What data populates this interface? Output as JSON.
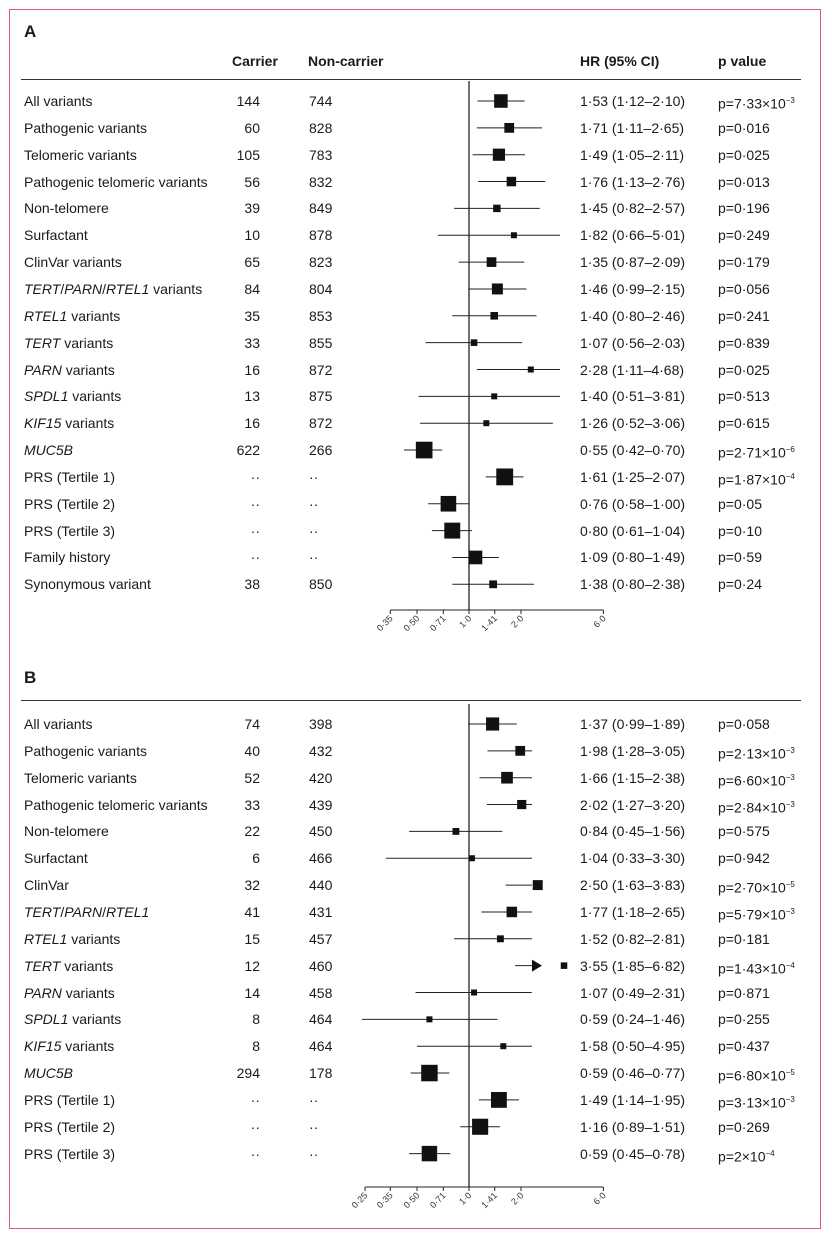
{
  "panels": [
    {
      "label": "A",
      "headers": {
        "carrier": "Carrier",
        "noncarrier": "Non-carrier",
        "hr": "HR (95% CI)",
        "p": "p value"
      },
      "axis_ticks": [
        "0·35",
        "0·50",
        "0·71",
        "1·0",
        "1·41",
        "2·0",
        "6·0"
      ]
    },
    {
      "label": "B",
      "axis_ticks": [
        "0·25",
        "0·35",
        "0·50",
        "0·71",
        "1·0",
        "1·41",
        "2·0",
        "6·0"
      ]
    }
  ],
  "chart_data": [
    {
      "type": "forest",
      "panel": "A",
      "xscale": "log",
      "reference_line": 1.0,
      "rows": [
        {
          "label": "All variants",
          "italic": [],
          "carrier": "144",
          "noncarrier": "744",
          "hr": 1.53,
          "lo": 1.12,
          "hi": 2.1,
          "hr_text": "1·53 (1·12–2·10)",
          "p_text": "p=7·33×10",
          "p_exp": "−3"
        },
        {
          "label": "Pathogenic variants",
          "carrier": "60",
          "noncarrier": "828",
          "hr": 1.71,
          "lo": 1.11,
          "hi": 2.65,
          "hr_text": "1·71 (1·11–2·65)",
          "p_text": "p=0·016",
          "p_exp": ""
        },
        {
          "label": "Telomeric variants",
          "carrier": "105",
          "noncarrier": "783",
          "hr": 1.49,
          "lo": 1.05,
          "hi": 2.11,
          "hr_text": "1·49 (1·05–2·11)",
          "p_text": "p=0·025",
          "p_exp": ""
        },
        {
          "label": "Pathogenic telomeric variants",
          "carrier": "56",
          "noncarrier": "832",
          "hr": 1.76,
          "lo": 1.13,
          "hi": 2.76,
          "hr_text": "1·76 (1·13–2·76)",
          "p_text": "p=0·013",
          "p_exp": ""
        },
        {
          "label": "Non-telomere",
          "carrier": "39",
          "noncarrier": "849",
          "hr": 1.45,
          "lo": 0.82,
          "hi": 2.57,
          "hr_text": "1·45 (0·82–2·57)",
          "p_text": "p=0·196",
          "p_exp": ""
        },
        {
          "label": "Surfactant",
          "carrier": "10",
          "noncarrier": "878",
          "hr": 1.82,
          "lo": 0.66,
          "hi": 5.01,
          "hr_text": "1·82 (0·66–5·01)",
          "p_text": "p=0·249",
          "p_exp": ""
        },
        {
          "label": "ClinVar variants",
          "carrier": "65",
          "noncarrier": "823",
          "hr": 1.35,
          "lo": 0.87,
          "hi": 2.09,
          "hr_text": "1·35 (0·87–2·09)",
          "p_text": "p=0·179",
          "p_exp": ""
        },
        {
          "label": "TERT/PARN/RTEL1 variants",
          "carrier": "84",
          "noncarrier": "804",
          "hr": 1.46,
          "lo": 0.99,
          "hi": 2.15,
          "hr_text": "1·46 (0·99–2·15)",
          "p_text": "p=0·056",
          "p_exp": ""
        },
        {
          "label": "RTEL1 variants",
          "carrier": "35",
          "noncarrier": "853",
          "hr": 1.4,
          "lo": 0.8,
          "hi": 2.46,
          "hr_text": "1·40 (0·80–2·46)",
          "p_text": "p=0·241",
          "p_exp": ""
        },
        {
          "label": "TERT variants",
          "carrier": "33",
          "noncarrier": "855",
          "hr": 1.07,
          "lo": 0.56,
          "hi": 2.03,
          "hr_text": "1·07 (0·56–2·03)",
          "p_text": "p=0·839",
          "p_exp": ""
        },
        {
          "label": "PARN variants",
          "carrier": "16",
          "noncarrier": "872",
          "hr": 2.28,
          "lo": 1.11,
          "hi": 4.68,
          "hr_text": "2·28 (1·11–4·68)",
          "p_text": "p=0·025",
          "p_exp": ""
        },
        {
          "label": "SPDL1 variants",
          "carrier": "13",
          "noncarrier": "875",
          "hr": 1.4,
          "lo": 0.51,
          "hi": 3.81,
          "hr_text": "1·40 (0·51–3·81)",
          "p_text": "p=0·513",
          "p_exp": ""
        },
        {
          "label": "KIF15 variants",
          "carrier": "16",
          "noncarrier": "872",
          "hr": 1.26,
          "lo": 0.52,
          "hi": 3.06,
          "hr_text": "1·26 (0·52–3·06)",
          "p_text": "p=0·615",
          "p_exp": ""
        },
        {
          "label": "MUC5B",
          "carrier": "622",
          "noncarrier": "266",
          "hr": 0.55,
          "lo": 0.42,
          "hi": 0.7,
          "hr_text": "0·55 (0·42–0·70)",
          "p_text": "p=2·71×10",
          "p_exp": "−6"
        },
        {
          "label": "PRS (Tertile 1)",
          "carrier": "··",
          "noncarrier": "··",
          "hr": 1.61,
          "lo": 1.25,
          "hi": 2.07,
          "hr_text": "1·61 (1·25–2·07)",
          "p_text": "p=1·87×10",
          "p_exp": "−4"
        },
        {
          "label": "PRS (Tertile 2)",
          "carrier": "··",
          "noncarrier": "··",
          "hr": 0.76,
          "lo": 0.58,
          "hi": 1.0,
          "hr_text": "0·76 (0·58–1·00)",
          "p_text": "p=0·05",
          "p_exp": ""
        },
        {
          "label": "PRS (Tertile 3)",
          "carrier": "··",
          "noncarrier": "··",
          "hr": 0.8,
          "lo": 0.61,
          "hi": 1.04,
          "hr_text": "0·80 (0·61–1·04)",
          "p_text": "p=0·10",
          "p_exp": ""
        },
        {
          "label": "Family history",
          "carrier": "··",
          "noncarrier": "··",
          "hr": 1.09,
          "lo": 0.8,
          "hi": 1.49,
          "hr_text": "1·09 (0·80–1·49)",
          "p_text": "p=0·59",
          "p_exp": ""
        },
        {
          "label": "Synonymous variant",
          "carrier": "38",
          "noncarrier": "850",
          "hr": 1.38,
          "lo": 0.8,
          "hi": 2.38,
          "hr_text": "1·38 (0·80–2·38)",
          "p_text": "p=0·24",
          "p_exp": ""
        }
      ]
    },
    {
      "type": "forest",
      "panel": "B",
      "xscale": "log",
      "reference_line": 1.0,
      "rows": [
        {
          "label": "All variants",
          "carrier": "74",
          "noncarrier": "398",
          "hr": 1.37,
          "lo": 0.99,
          "hi": 1.89,
          "hr_text": "1·37 (0·99–1·89)",
          "p_text": "p=0·058",
          "p_exp": ""
        },
        {
          "label": "Pathogenic variants",
          "carrier": "40",
          "noncarrier": "432",
          "hr": 1.98,
          "lo": 1.28,
          "hi": 3.05,
          "hr_text": "1·98 (1·28–3·05)",
          "p_text": "p=2·13×10",
          "p_exp": "−3"
        },
        {
          "label": "Telomeric variants",
          "carrier": "52",
          "noncarrier": "420",
          "hr": 1.66,
          "lo": 1.15,
          "hi": 2.38,
          "hr_text": "1·66 (1·15–2·38)",
          "p_text": "p=6·60×10",
          "p_exp": "−3"
        },
        {
          "label": "Pathogenic telomeric variants",
          "carrier": "33",
          "noncarrier": "439",
          "hr": 2.02,
          "lo": 1.27,
          "hi": 3.2,
          "hr_text": "2·02 (1·27–3·20)",
          "p_text": "p=2·84×10",
          "p_exp": "−3"
        },
        {
          "label": "Non-telomere",
          "carrier": "22",
          "noncarrier": "450",
          "hr": 0.84,
          "lo": 0.45,
          "hi": 1.56,
          "hr_text": "0·84 (0·45–1·56)",
          "p_text": "p=0·575",
          "p_exp": ""
        },
        {
          "label": "Surfactant",
          "carrier": "6",
          "noncarrier": "466",
          "hr": 1.04,
          "lo": 0.33,
          "hi": 3.3,
          "hr_text": "1·04 (0·33–3·30)",
          "p_text": "p=0·942",
          "p_exp": ""
        },
        {
          "label": "ClinVar",
          "carrier": "32",
          "noncarrier": "440",
          "hr": 2.5,
          "lo": 1.63,
          "hi": 3.83,
          "hr_text": "2·50 (1·63–3·83)",
          "p_text": "p=2·70×10",
          "p_exp": "−5"
        },
        {
          "label": "TERT/PARN/RTEL1",
          "carrier": "41",
          "noncarrier": "431",
          "hr": 1.77,
          "lo": 1.18,
          "hi": 2.65,
          "hr_text": "1·77 (1·18–2·65)",
          "p_text": "p=5·79×10",
          "p_exp": "−3"
        },
        {
          "label": "RTEL1 variants",
          "carrier": "15",
          "noncarrier": "457",
          "hr": 1.52,
          "lo": 0.82,
          "hi": 2.81,
          "hr_text": "1·52 (0·82–2·81)",
          "p_text": "p=0·181",
          "p_exp": ""
        },
        {
          "label": "TERT variants",
          "carrier": "12",
          "noncarrier": "460",
          "hr": 3.55,
          "lo": 1.85,
          "hi": 6.82,
          "hr_text": "3·55 (1·85–6·82)",
          "p_text": "p=1·43×10",
          "p_exp": "−4",
          "arrow": true
        },
        {
          "label": "PARN variants",
          "carrier": "14",
          "noncarrier": "458",
          "hr": 1.07,
          "lo": 0.49,
          "hi": 2.31,
          "hr_text": "1·07 (0·49–2·31)",
          "p_text": "p=0·871",
          "p_exp": ""
        },
        {
          "label": "SPDL1 variants",
          "carrier": "8",
          "noncarrier": "464",
          "hr": 0.59,
          "lo": 0.24,
          "hi": 1.46,
          "hr_text": "0·59 (0·24–1·46)",
          "p_text": "p=0·255",
          "p_exp": ""
        },
        {
          "label": "KIF15 variants",
          "carrier": "8",
          "noncarrier": "464",
          "hr": 1.58,
          "lo": 0.5,
          "hi": 4.95,
          "hr_text": "1·58 (0·50–4·95)",
          "p_text": "p=0·437",
          "p_exp": ""
        },
        {
          "label": "MUC5B",
          "carrier": "294",
          "noncarrier": "178",
          "hr": 0.59,
          "lo": 0.46,
          "hi": 0.77,
          "hr_text": "0·59 (0·46–0·77)",
          "p_text": "p=6·80×10",
          "p_exp": "−5"
        },
        {
          "label": "PRS (Tertile 1)",
          "carrier": "··",
          "noncarrier": "··",
          "hr": 1.49,
          "lo": 1.14,
          "hi": 1.95,
          "hr_text": "1·49 (1·14–1·95)",
          "p_text": "p=3·13×10",
          "p_exp": "−3"
        },
        {
          "label": "PRS (Tertile 2)",
          "carrier": "··",
          "noncarrier": "··",
          "hr": 1.16,
          "lo": 0.89,
          "hi": 1.51,
          "hr_text": "1·16 (0·89–1·51)",
          "p_text": "p=0·269",
          "p_exp": ""
        },
        {
          "label": "PRS (Tertile 3)",
          "carrier": "··",
          "noncarrier": "··",
          "hr": 0.59,
          "lo": 0.45,
          "hi": 0.78,
          "hr_text": "0·59 (0·45–0·78)",
          "p_text": "p=2×10",
          "p_exp": "−4"
        }
      ]
    }
  ]
}
